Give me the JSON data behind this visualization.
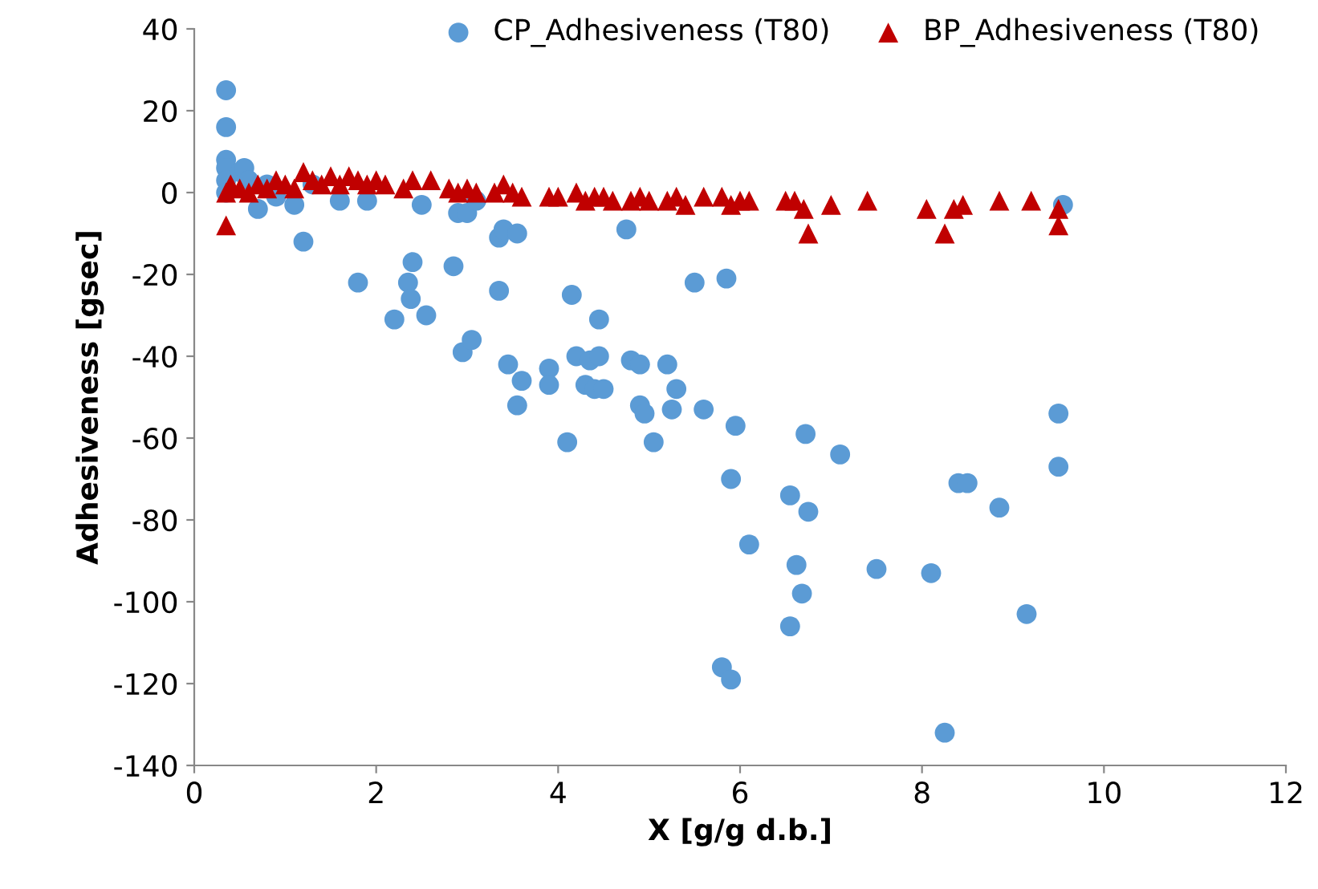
{
  "chart_data": {
    "type": "scatter",
    "xlabel": "X [g/g d.b.]",
    "ylabel": "Adhesiveness [gsec]",
    "xlim": [
      0,
      12
    ],
    "xticks": [
      0,
      2,
      4,
      6,
      8,
      10,
      12
    ],
    "ylim": [
      -140,
      40
    ],
    "yticks": [
      -140,
      -120,
      -100,
      -80,
      -60,
      -40,
      -20,
      0,
      20,
      40
    ],
    "grid": false,
    "legend": "top right",
    "series": [
      {
        "name": "CP_Adhesiveness (T80)",
        "color": "#5b9bd5",
        "marker": "circle",
        "x": [
          0.35,
          0.35,
          0.35,
          0.35,
          0.35,
          0.35,
          0.5,
          0.55,
          0.6,
          0.7,
          0.8,
          0.9,
          1.1,
          1.2,
          1.3,
          1.5,
          1.6,
          1.8,
          1.9,
          2.2,
          2.35,
          2.38,
          2.4,
          2.5,
          2.55,
          2.85,
          2.9,
          2.95,
          3.0,
          3.05,
          3.1,
          3.35,
          3.35,
          3.4,
          3.45,
          3.55,
          3.55,
          3.6,
          3.9,
          3.9,
          4.1,
          4.15,
          4.2,
          4.3,
          4.35,
          4.4,
          4.45,
          4.45,
          4.5,
          4.75,
          4.8,
          4.9,
          4.9,
          4.95,
          5.05,
          5.2,
          5.25,
          5.3,
          5.5,
          5.6,
          5.8,
          5.85,
          5.9,
          5.9,
          5.95,
          6.1,
          6.55,
          6.55,
          6.62,
          6.68,
          6.72,
          6.75,
          7.1,
          7.5,
          8.1,
          8.25,
          8.4,
          8.5,
          8.85,
          9.15,
          9.5,
          9.5,
          9.55
        ],
        "values": [
          25,
          16,
          8,
          6,
          3,
          0,
          5,
          6,
          3,
          -4,
          2,
          -1,
          -3,
          -12,
          2,
          null,
          -2,
          -22,
          -2,
          -31,
          -22,
          -26,
          -17,
          -3,
          -30,
          -18,
          -5,
          -39,
          -5,
          -36,
          -2,
          -24,
          -11,
          -9,
          -42,
          -52,
          -10,
          -46,
          -43,
          -47,
          -61,
          -25,
          -40,
          -47,
          -41,
          -48,
          -31,
          -40,
          -48,
          -9,
          -41,
          -42,
          -52,
          -54,
          -61,
          -42,
          -53,
          -48,
          -22,
          -53,
          -116,
          -21,
          -70,
          -119,
          -57,
          -86,
          -74,
          -106,
          -91,
          -98,
          -59,
          -78,
          -64,
          -92,
          -93,
          -132,
          -71,
          -71,
          -77,
          -103,
          -54,
          -67,
          -3
        ]
      },
      {
        "name": "BP_Adhesiveness (T80)",
        "color": "#c00000",
        "marker": "triangle",
        "x": [
          0.35,
          0.35,
          0.4,
          0.5,
          0.6,
          0.7,
          0.8,
          0.9,
          1.0,
          1.1,
          1.2,
          1.3,
          1.4,
          1.5,
          1.6,
          1.7,
          1.8,
          1.9,
          2.0,
          2.1,
          2.3,
          2.4,
          2.6,
          2.8,
          2.9,
          3.0,
          3.1,
          3.3,
          3.4,
          3.5,
          3.6,
          3.9,
          4.0,
          4.2,
          4.3,
          4.4,
          4.5,
          4.6,
          4.8,
          4.9,
          5.0,
          5.2,
          5.3,
          5.4,
          5.6,
          5.8,
          5.9,
          6.0,
          6.1,
          6.5,
          6.6,
          6.7,
          6.75,
          7.0,
          7.4,
          8.05,
          8.25,
          8.35,
          8.45,
          8.85,
          9.2,
          9.5,
          9.5
        ],
        "values": [
          -8,
          0,
          2,
          1,
          0,
          2,
          1,
          3,
          2,
          1,
          5,
          3,
          2,
          4,
          2,
          4,
          3,
          2,
          3,
          2,
          1,
          3,
          3,
          1,
          0,
          1,
          0,
          0,
          2,
          0,
          -1,
          -1,
          -1,
          0,
          -2,
          -1,
          -1,
          -2,
          -2,
          -1,
          -2,
          -2,
          -1,
          -3,
          -1,
          -1,
          -3,
          -2,
          -2,
          -2,
          -2,
          -4,
          -10,
          -3,
          -2,
          -4,
          -10,
          -4,
          -3,
          -2,
          -2,
          -4,
          -8
        ]
      }
    ]
  }
}
